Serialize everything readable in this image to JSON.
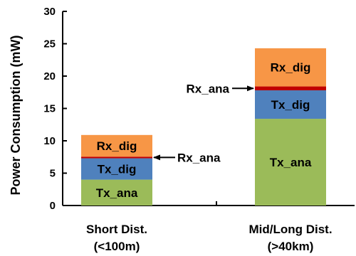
{
  "chart_data": {
    "type": "bar",
    "stacked": true,
    "ylabel": "Power Consumption (mW)",
    "ylim": [
      0,
      30
    ],
    "yticks": [
      "0",
      "5",
      "10",
      "15",
      "20",
      "25",
      "30"
    ],
    "categories": [
      {
        "line1": "Short Dist.",
        "line2": "(<100m)"
      },
      {
        "line1": "Mid/Long Dist.",
        "line2": "(>40km)"
      }
    ],
    "series": [
      {
        "name": "Tx_ana",
        "color": "#9bbb59",
        "values": [
          4.0,
          13.4
        ]
      },
      {
        "name": "Tx_dig",
        "color": "#4f81bd",
        "values": [
          3.3,
          4.4
        ]
      },
      {
        "name": "Rx_ana",
        "color": "#c00000",
        "values": [
          0.25,
          0.6
        ]
      },
      {
        "name": "Rx_dig",
        "color": "#f79646",
        "values": [
          3.35,
          5.9
        ]
      }
    ],
    "annotations": [
      {
        "text": "Rx_ana",
        "category": 0,
        "series": "Rx_ana",
        "side": "right"
      },
      {
        "text": "Rx_ana",
        "category": 1,
        "series": "Rx_ana",
        "side": "left"
      }
    ],
    "grid": false
  }
}
